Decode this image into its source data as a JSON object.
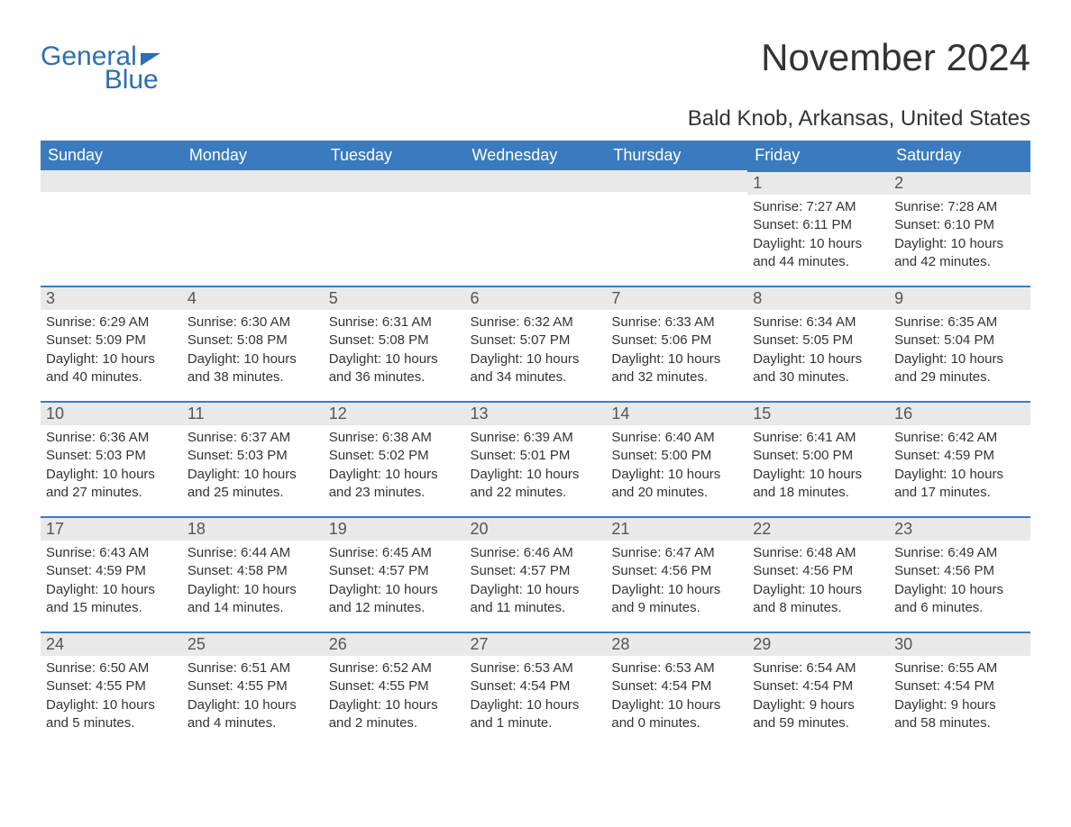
{
  "logo": {
    "word1": "General",
    "word2": "Blue"
  },
  "title": "November 2024",
  "location": "Bald Knob, Arkansas, United States",
  "colors": {
    "header_bg": "#3a7bbf",
    "header_text": "#ffffff",
    "daybar_bg": "#e9e9e9",
    "daybar_border": "#3a7bbf",
    "text": "#333333",
    "logo": "#2c6fb5",
    "page_bg": "#ffffff"
  },
  "weekdays": [
    "Sunday",
    "Monday",
    "Tuesday",
    "Wednesday",
    "Thursday",
    "Friday",
    "Saturday"
  ],
  "weeks": [
    [
      null,
      null,
      null,
      null,
      null,
      {
        "n": "1",
        "sunrise": "Sunrise: 7:27 AM",
        "sunset": "Sunset: 6:11 PM",
        "day1": "Daylight: 10 hours",
        "day2": "and 44 minutes."
      },
      {
        "n": "2",
        "sunrise": "Sunrise: 7:28 AM",
        "sunset": "Sunset: 6:10 PM",
        "day1": "Daylight: 10 hours",
        "day2": "and 42 minutes."
      }
    ],
    [
      {
        "n": "3",
        "sunrise": "Sunrise: 6:29 AM",
        "sunset": "Sunset: 5:09 PM",
        "day1": "Daylight: 10 hours",
        "day2": "and 40 minutes."
      },
      {
        "n": "4",
        "sunrise": "Sunrise: 6:30 AM",
        "sunset": "Sunset: 5:08 PM",
        "day1": "Daylight: 10 hours",
        "day2": "and 38 minutes."
      },
      {
        "n": "5",
        "sunrise": "Sunrise: 6:31 AM",
        "sunset": "Sunset: 5:08 PM",
        "day1": "Daylight: 10 hours",
        "day2": "and 36 minutes."
      },
      {
        "n": "6",
        "sunrise": "Sunrise: 6:32 AM",
        "sunset": "Sunset: 5:07 PM",
        "day1": "Daylight: 10 hours",
        "day2": "and 34 minutes."
      },
      {
        "n": "7",
        "sunrise": "Sunrise: 6:33 AM",
        "sunset": "Sunset: 5:06 PM",
        "day1": "Daylight: 10 hours",
        "day2": "and 32 minutes."
      },
      {
        "n": "8",
        "sunrise": "Sunrise: 6:34 AM",
        "sunset": "Sunset: 5:05 PM",
        "day1": "Daylight: 10 hours",
        "day2": "and 30 minutes."
      },
      {
        "n": "9",
        "sunrise": "Sunrise: 6:35 AM",
        "sunset": "Sunset: 5:04 PM",
        "day1": "Daylight: 10 hours",
        "day2": "and 29 minutes."
      }
    ],
    [
      {
        "n": "10",
        "sunrise": "Sunrise: 6:36 AM",
        "sunset": "Sunset: 5:03 PM",
        "day1": "Daylight: 10 hours",
        "day2": "and 27 minutes."
      },
      {
        "n": "11",
        "sunrise": "Sunrise: 6:37 AM",
        "sunset": "Sunset: 5:03 PM",
        "day1": "Daylight: 10 hours",
        "day2": "and 25 minutes."
      },
      {
        "n": "12",
        "sunrise": "Sunrise: 6:38 AM",
        "sunset": "Sunset: 5:02 PM",
        "day1": "Daylight: 10 hours",
        "day2": "and 23 minutes."
      },
      {
        "n": "13",
        "sunrise": "Sunrise: 6:39 AM",
        "sunset": "Sunset: 5:01 PM",
        "day1": "Daylight: 10 hours",
        "day2": "and 22 minutes."
      },
      {
        "n": "14",
        "sunrise": "Sunrise: 6:40 AM",
        "sunset": "Sunset: 5:00 PM",
        "day1": "Daylight: 10 hours",
        "day2": "and 20 minutes."
      },
      {
        "n": "15",
        "sunrise": "Sunrise: 6:41 AM",
        "sunset": "Sunset: 5:00 PM",
        "day1": "Daylight: 10 hours",
        "day2": "and 18 minutes."
      },
      {
        "n": "16",
        "sunrise": "Sunrise: 6:42 AM",
        "sunset": "Sunset: 4:59 PM",
        "day1": "Daylight: 10 hours",
        "day2": "and 17 minutes."
      }
    ],
    [
      {
        "n": "17",
        "sunrise": "Sunrise: 6:43 AM",
        "sunset": "Sunset: 4:59 PM",
        "day1": "Daylight: 10 hours",
        "day2": "and 15 minutes."
      },
      {
        "n": "18",
        "sunrise": "Sunrise: 6:44 AM",
        "sunset": "Sunset: 4:58 PM",
        "day1": "Daylight: 10 hours",
        "day2": "and 14 minutes."
      },
      {
        "n": "19",
        "sunrise": "Sunrise: 6:45 AM",
        "sunset": "Sunset: 4:57 PM",
        "day1": "Daylight: 10 hours",
        "day2": "and 12 minutes."
      },
      {
        "n": "20",
        "sunrise": "Sunrise: 6:46 AM",
        "sunset": "Sunset: 4:57 PM",
        "day1": "Daylight: 10 hours",
        "day2": "and 11 minutes."
      },
      {
        "n": "21",
        "sunrise": "Sunrise: 6:47 AM",
        "sunset": "Sunset: 4:56 PM",
        "day1": "Daylight: 10 hours",
        "day2": "and 9 minutes."
      },
      {
        "n": "22",
        "sunrise": "Sunrise: 6:48 AM",
        "sunset": "Sunset: 4:56 PM",
        "day1": "Daylight: 10 hours",
        "day2": "and 8 minutes."
      },
      {
        "n": "23",
        "sunrise": "Sunrise: 6:49 AM",
        "sunset": "Sunset: 4:56 PM",
        "day1": "Daylight: 10 hours",
        "day2": "and 6 minutes."
      }
    ],
    [
      {
        "n": "24",
        "sunrise": "Sunrise: 6:50 AM",
        "sunset": "Sunset: 4:55 PM",
        "day1": "Daylight: 10 hours",
        "day2": "and 5 minutes."
      },
      {
        "n": "25",
        "sunrise": "Sunrise: 6:51 AM",
        "sunset": "Sunset: 4:55 PM",
        "day1": "Daylight: 10 hours",
        "day2": "and 4 minutes."
      },
      {
        "n": "26",
        "sunrise": "Sunrise: 6:52 AM",
        "sunset": "Sunset: 4:55 PM",
        "day1": "Daylight: 10 hours",
        "day2": "and 2 minutes."
      },
      {
        "n": "27",
        "sunrise": "Sunrise: 6:53 AM",
        "sunset": "Sunset: 4:54 PM",
        "day1": "Daylight: 10 hours",
        "day2": "and 1 minute."
      },
      {
        "n": "28",
        "sunrise": "Sunrise: 6:53 AM",
        "sunset": "Sunset: 4:54 PM",
        "day1": "Daylight: 10 hours",
        "day2": "and 0 minutes."
      },
      {
        "n": "29",
        "sunrise": "Sunrise: 6:54 AM",
        "sunset": "Sunset: 4:54 PM",
        "day1": "Daylight: 9 hours",
        "day2": "and 59 minutes."
      },
      {
        "n": "30",
        "sunrise": "Sunrise: 6:55 AM",
        "sunset": "Sunset: 4:54 PM",
        "day1": "Daylight: 9 hours",
        "day2": "and 58 minutes."
      }
    ]
  ]
}
